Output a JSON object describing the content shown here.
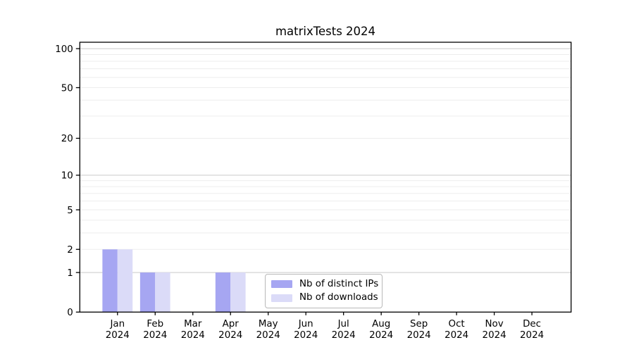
{
  "chart_data": {
    "type": "bar",
    "title": "matrixTests 2024",
    "categories": [
      {
        "month": "Jan",
        "year": "2024"
      },
      {
        "month": "Feb",
        "year": "2024"
      },
      {
        "month": "Mar",
        "year": "2024"
      },
      {
        "month": "Apr",
        "year": "2024"
      },
      {
        "month": "May",
        "year": "2024"
      },
      {
        "month": "Jun",
        "year": "2024"
      },
      {
        "month": "Jul",
        "year": "2024"
      },
      {
        "month": "Aug",
        "year": "2024"
      },
      {
        "month": "Sep",
        "year": "2024"
      },
      {
        "month": "Oct",
        "year": "2024"
      },
      {
        "month": "Nov",
        "year": "2024"
      },
      {
        "month": "Dec",
        "year": "2024"
      }
    ],
    "series": [
      {
        "name": "Nb of distinct IPs",
        "color": "#a6a6f2",
        "values": [
          2,
          1,
          0,
          1,
          0,
          0,
          0,
          0,
          0,
          0,
          0,
          0
        ]
      },
      {
        "name": "Nb of downloads",
        "color": "#dbdbf8",
        "values": [
          2,
          1,
          0,
          1,
          0,
          0,
          0,
          0,
          0,
          0,
          0,
          0
        ]
      }
    ],
    "y_axis": {
      "scale": "log1p",
      "ticks": [
        100,
        50,
        20,
        10,
        5,
        2,
        1,
        0
      ],
      "top_value": 112
    },
    "grid": {
      "major_values": [
        1,
        10,
        100
      ],
      "minor_values": [
        2,
        3,
        4,
        5,
        6,
        7,
        8,
        9,
        20,
        30,
        40,
        50,
        60,
        70,
        80,
        90
      ],
      "major_color": "#c9c9c9",
      "minor_color": "#ededed"
    },
    "axis_color": "#000000",
    "legend_position": "lower center-left inside plot"
  }
}
